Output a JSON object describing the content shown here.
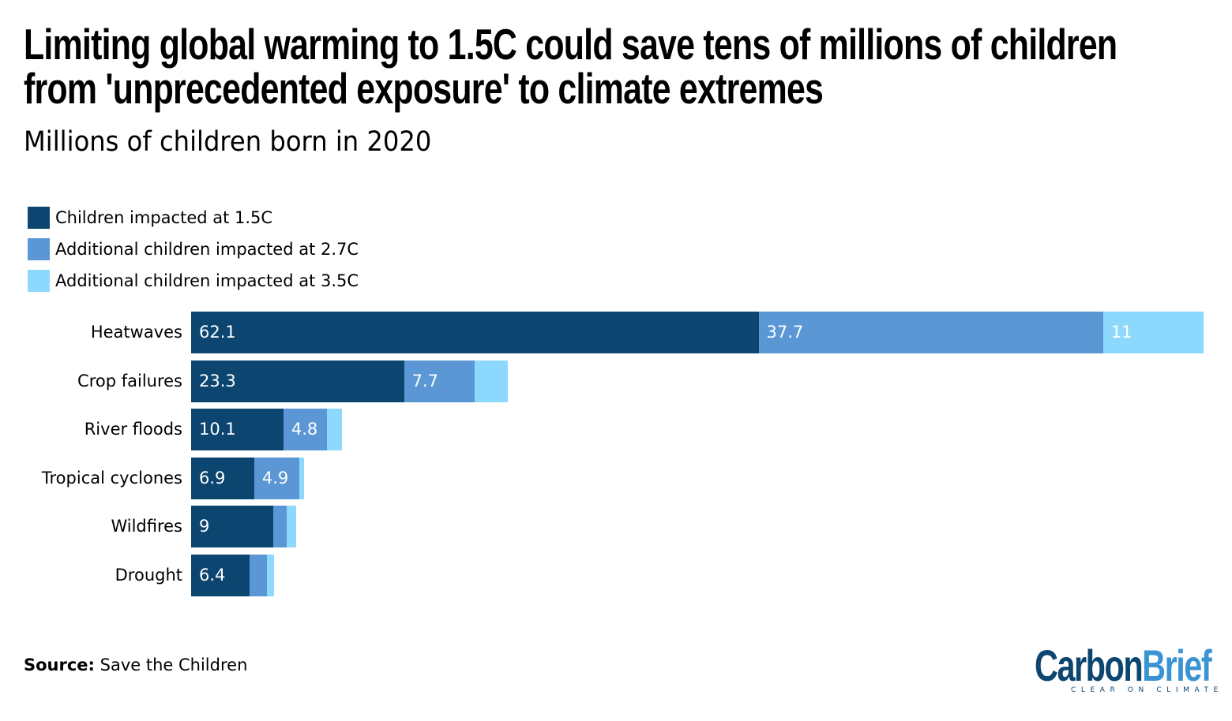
{
  "title_line1": "Limiting global warming to 1.5C could save tens of millions of children",
  "title_line2": "from 'unprecedented exposure' to climate extremes",
  "subtitle": "Millions of children born in 2020",
  "source_label": "Source:",
  "source_text": "Save the Children",
  "logo": {
    "part1": "Carbon",
    "part2": "Brief",
    "tagline": "CLEAR ON CLIMATE",
    "color1": "#0c4570",
    "color2": "#3a94d4"
  },
  "chart_data": {
    "type": "bar",
    "orientation": "horizontal",
    "stacked": true,
    "title": "Limiting global warming to 1.5C could save tens of millions of children from 'unprecedented exposure' to climate extremes",
    "subtitle": "Millions of children born in 2020",
    "categories": [
      "Heatwaves",
      "Crop failures",
      "River floods",
      "Tropical cyclones",
      "Wildfires",
      "Drought"
    ],
    "series": [
      {
        "name": "Children impacted at 1.5C",
        "color": "#0c4570",
        "values": [
          62.1,
          23.3,
          10.1,
          6.9,
          9,
          6.4
        ],
        "labels": [
          "62.1",
          "23.3",
          "10.1",
          "6.9",
          "9",
          "6.4"
        ]
      },
      {
        "name": "Additional children impacted at 2.7C",
        "color": "#5b97d4",
        "values": [
          37.7,
          7.7,
          4.8,
          4.9,
          1.5,
          1.9
        ],
        "labels": [
          "37.7",
          "7.7",
          "4.8",
          "4.9",
          "",
          ""
        ]
      },
      {
        "name": "Additional children impacted at 3.5C",
        "color": "#8dd9fd",
        "values": [
          11,
          3.7,
          1.6,
          0.6,
          1.0,
          0.8
        ],
        "labels": [
          "11",
          "",
          "",
          "",
          "",
          ""
        ]
      }
    ],
    "legend": "top-left",
    "grid": false,
    "xaxis_visible": false
  }
}
